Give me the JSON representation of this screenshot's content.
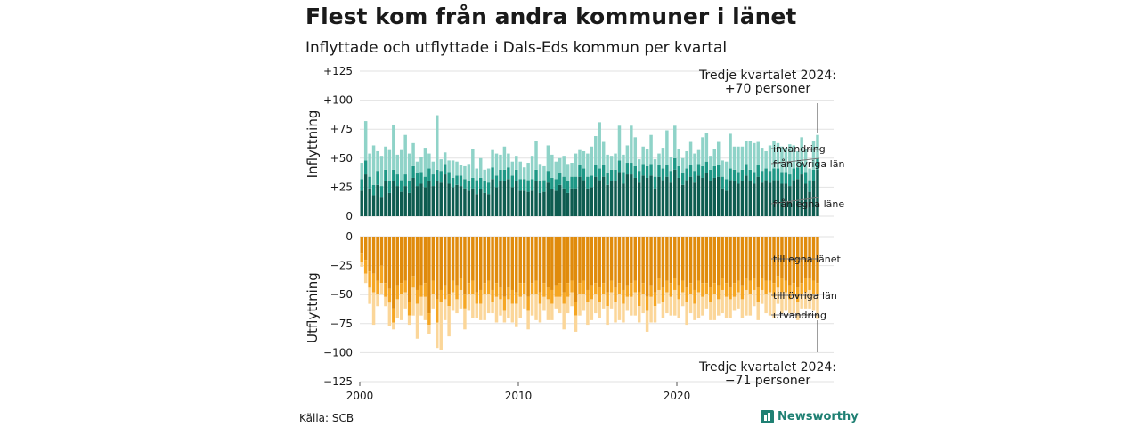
{
  "header": {
    "title": "Flest kom från andra kommuner i länet",
    "subtitle": "Inflyttade och utflyttade i Dals-Eds kommun per kvartal"
  },
  "footer": {
    "source": "Källa: SCB",
    "brand": "Newsworthy",
    "brand_icon": "bar-chart-icon"
  },
  "colors": {
    "in_egna": "#0e5c50",
    "in_ovriga": "#1e9886",
    "in_invandring": "#8fd3c8",
    "ut_egna": "#e08b0c",
    "ut_ovriga": "#f5a623",
    "ut_utvandring": "#fbd699",
    "grid": "#e2e2e2"
  },
  "chart_data": [
    {
      "type": "bar",
      "stacked": true,
      "ylabel": "Inflyttning",
      "ylim": [
        0,
        125
      ],
      "yticks": [
        "0",
        "+25",
        "+50",
        "+75",
        "+100",
        "+125"
      ],
      "yticks_values": [
        0,
        25,
        50,
        75,
        100,
        125
      ],
      "grid": true,
      "start_quarter": "2000 Q1",
      "annotation": {
        "line1": "Tredje kvartalet 2024:",
        "line2": "+70 personer"
      },
      "series": [
        {
          "name": "från egna läne",
          "values": [
            22,
            36,
            24,
            18,
            27,
            16,
            30,
            20,
            30,
            26,
            21,
            26,
            20,
            33,
            26,
            28,
            25,
            30,
            26,
            30,
            29,
            36,
            28,
            25,
            27,
            26,
            24,
            22,
            24,
            19,
            23,
            20,
            19,
            32,
            25,
            30,
            30,
            32,
            25,
            30,
            22,
            22,
            21,
            22,
            30,
            20,
            21,
            29,
            23,
            22,
            27,
            24,
            20,
            24,
            24,
            34,
            31,
            24,
            25,
            34,
            31,
            34,
            27,
            30,
            30,
            38,
            28,
            36,
            36,
            33,
            29,
            35,
            33,
            35,
            24,
            34,
            31,
            34,
            29,
            40,
            33,
            27,
            31,
            34,
            29,
            35,
            33,
            37,
            30,
            33,
            34,
            24,
            22,
            31,
            30,
            28,
            30,
            35,
            30,
            28,
            34,
            29,
            31,
            29,
            31,
            31,
            28,
            28,
            26,
            31,
            32,
            36,
            28,
            21,
            30,
            40
          ]
        },
        {
          "name": "från övriga län",
          "values": [
            10,
            12,
            10,
            9,
            12,
            10,
            10,
            10,
            10,
            10,
            10,
            10,
            10,
            10,
            11,
            10,
            9,
            11,
            10,
            10,
            10,
            9,
            10,
            8,
            8,
            9,
            8,
            8,
            9,
            12,
            10,
            10,
            10,
            10,
            10,
            10,
            10,
            10,
            10,
            10,
            10,
            10,
            10,
            10,
            10,
            10,
            10,
            10,
            10,
            10,
            10,
            10,
            10,
            10,
            10,
            10,
            10,
            10,
            10,
            10,
            10,
            10,
            10,
            10,
            10,
            10,
            10,
            10,
            10,
            10,
            10,
            10,
            10,
            10,
            10,
            10,
            10,
            10,
            10,
            10,
            10,
            10,
            10,
            10,
            10,
            10,
            10,
            10,
            10,
            10,
            10,
            10,
            10,
            10,
            10,
            10,
            10,
            10,
            10,
            10,
            10,
            10,
            10,
            10,
            10,
            10,
            10,
            10,
            10,
            10,
            10,
            10,
            10,
            10,
            10,
            10
          ]
        },
        {
          "name": "invandring",
          "values": [
            14,
            34,
            20,
            34,
            17,
            26,
            20,
            27,
            39,
            17,
            26,
            34,
            24,
            20,
            10,
            13,
            25,
            13,
            11,
            47,
            10,
            10,
            10,
            15,
            12,
            9,
            11,
            15,
            25,
            10,
            17,
            10,
            12,
            15,
            19,
            13,
            20,
            12,
            12,
            12,
            15,
            10,
            15,
            20,
            25,
            15,
            12,
            22,
            20,
            15,
            13,
            18,
            15,
            12,
            20,
            13,
            15,
            20,
            25,
            25,
            40,
            20,
            16,
            12,
            14,
            30,
            15,
            15,
            32,
            25,
            10,
            15,
            15,
            25,
            15,
            10,
            18,
            30,
            12,
            28,
            15,
            13,
            15,
            20,
            15,
            12,
            25,
            25,
            12,
            15,
            20,
            14,
            15,
            30,
            20,
            22,
            20,
            20,
            25,
            25,
            20,
            20,
            15,
            22,
            24,
            22,
            22,
            21,
            26,
            20,
            14,
            22,
            20,
            10,
            25,
            20
          ]
        }
      ]
    },
    {
      "type": "bar",
      "stacked": true,
      "ylabel": "Utflyttning",
      "ylim": [
        -125,
        0
      ],
      "yticks": [
        "0",
        "−25",
        "−50",
        "−75",
        "−100",
        "−125"
      ],
      "yticks_values": [
        0,
        -25,
        -50,
        -75,
        -100,
        -125
      ],
      "grid": true,
      "start_quarter": "2000 Q1",
      "annotation": {
        "line1": "Tredje kvartalet 2024:",
        "line2": "−71 personer"
      },
      "series": [
        {
          "name": "till egna länet",
          "values": [
            -14,
            -20,
            -30,
            -32,
            -38,
            -25,
            -40,
            -45,
            -62,
            -42,
            -40,
            -38,
            -56,
            -34,
            -46,
            -42,
            -40,
            -66,
            -38,
            -54,
            -46,
            -42,
            -50,
            -38,
            -42,
            -36,
            -50,
            -40,
            -38,
            -48,
            -46,
            -40,
            -38,
            -46,
            -40,
            -44,
            -52,
            -44,
            -46,
            -48,
            -40,
            -40,
            -52,
            -40,
            -38,
            -48,
            -40,
            -44,
            -46,
            -42,
            -40,
            -48,
            -40,
            -38,
            -56,
            -40,
            -38,
            -46,
            -42,
            -40,
            -44,
            -40,
            -48,
            -38,
            -44,
            -40,
            -46,
            -42,
            -40,
            -38,
            -48,
            -40,
            -52,
            -42,
            -48,
            -36,
            -44,
            -38,
            -40,
            -36,
            -42,
            -38,
            -44,
            -40,
            -46,
            -38,
            -40,
            -40,
            -44,
            -40,
            -42,
            -36,
            -40,
            -44,
            -40,
            -38,
            -42,
            -36,
            -38,
            -36,
            -44,
            -36,
            -38,
            -38,
            -40,
            -34,
            -36,
            -38,
            -42,
            -40,
            -44,
            -40,
            -36,
            -36,
            -38,
            -40
          ]
        },
        {
          "name": "till övriga län",
          "values": [
            -8,
            -12,
            -14,
            -16,
            -12,
            -15,
            -12,
            -12,
            -12,
            -12,
            -10,
            -10,
            -12,
            -10,
            -12,
            -10,
            -12,
            -10,
            -12,
            -20,
            -10,
            -12,
            -10,
            -10,
            -12,
            -10,
            -12,
            -10,
            -12,
            -10,
            -12,
            -10,
            -12,
            -10,
            -12,
            -10,
            -12,
            -10,
            -12,
            -10,
            -12,
            -10,
            -12,
            -10,
            -12,
            -10,
            -12,
            -10,
            -12,
            -10,
            -12,
            -10,
            -12,
            -10,
            -12,
            -10,
            -12,
            -10,
            -12,
            -10,
            -12,
            -10,
            -12,
            -10,
            -12,
            -10,
            -12,
            -10,
            -12,
            -10,
            -12,
            -10,
            -12,
            -10,
            -12,
            -10,
            -12,
            -10,
            -12,
            -10,
            -12,
            -10,
            -12,
            -10,
            -12,
            -10,
            -12,
            -10,
            -12,
            -10,
            -12,
            -10,
            -12,
            -10,
            -12,
            -10,
            -12,
            -10,
            -12,
            -10,
            -12,
            -10,
            -12,
            -10,
            -12,
            -10,
            -12,
            -10,
            -12,
            -10,
            -12,
            -10,
            -12,
            -10,
            -12,
            -10
          ]
        },
        {
          "name": "utvandring",
          "values": [
            -4,
            -8,
            -14,
            -28,
            -10,
            -10,
            -8,
            -20,
            -6,
            -16,
            -22,
            -14,
            -8,
            -24,
            -30,
            -16,
            -20,
            -8,
            -12,
            -22,
            -42,
            -18,
            -26,
            -16,
            -12,
            -16,
            -18,
            -14,
            -20,
            -12,
            -14,
            -22,
            -16,
            -10,
            -22,
            -14,
            -10,
            -16,
            -16,
            -20,
            -18,
            -12,
            -16,
            -18,
            -22,
            -16,
            -12,
            -18,
            -14,
            -10,
            -14,
            -22,
            -14,
            -12,
            -14,
            -18,
            -14,
            -20,
            -18,
            -16,
            -14,
            -12,
            -16,
            -14,
            -18,
            -22,
            -16,
            -12,
            -16,
            -20,
            -14,
            -16,
            -18,
            -22,
            -14,
            -12,
            -14,
            -18,
            -16,
            -22,
            -16,
            -12,
            -20,
            -16,
            -14,
            -22,
            -16,
            -12,
            -16,
            -22,
            -14,
            -20,
            -18,
            -16,
            -12,
            -14,
            -16,
            -22,
            -18,
            -14,
            -16,
            -12,
            -16,
            -20,
            -18,
            -14,
            -18,
            -16,
            -12,
            -16,
            -16,
            -12,
            -14,
            -16,
            -14,
            -21
          ]
        }
      ]
    }
  ],
  "xaxis": {
    "ticks": [
      "2000",
      "2010",
      "2020"
    ],
    "tick_years": [
      2000,
      2010,
      2020
    ]
  }
}
